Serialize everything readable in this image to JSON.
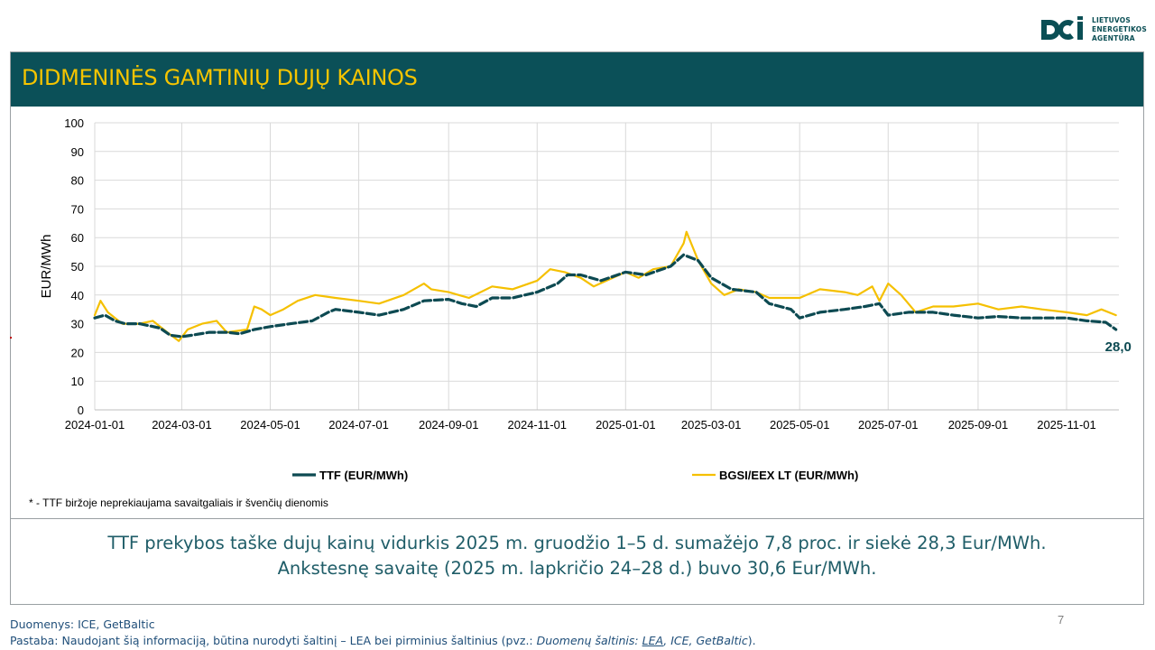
{
  "logo": {
    "line1": "LIETUVOS",
    "line2": "ENERGETIKOS",
    "line3": "AGENTŪRA"
  },
  "title": "DIDMENINĖS GAMTINIŲ DUJŲ KAINOS",
  "footnote": "* - TTF biržoje neprekiaujama savaitgaliais ir švenčių dienomis",
  "summary": {
    "line1": "TTF prekybos taške dujų kainų vidurkis 2025 m. gruodžio 1–5 d. sumažėjo 7,8 proc. ir siekė 28,3 Eur/MWh.",
    "line2": "Ankstesnę savaitę (2025 m. lapkričio 24–28 d.) buvo 30,6 Eur/MWh."
  },
  "page_number": "7",
  "footer": {
    "sources": "Duomenys: ICE, GetBaltic",
    "note_prefix": "Pastaba: Naudojant šią informaciją, būtina nurodyti šaltinį – LEA bei pirminius šaltinius (pvz.: ",
    "note_italic": "Duomenų šaltinis: ",
    "note_link": "LEA",
    "note_italic2": ", ICE, GetBaltic",
    "note_suffix": ")."
  },
  "colors": {
    "ttf": "#0d4a52",
    "bgsi": "#f5c000",
    "title_bg": "#0b5058",
    "title_text": "#f5c400",
    "summary_text": "#1f5d68"
  },
  "chart_data": {
    "type": "line",
    "title": "",
    "xlabel": "",
    "ylabel": "EUR/MWh",
    "ylim": [
      0,
      100
    ],
    "yticks": [
      "0",
      "10",
      "20",
      "30",
      "40",
      "50",
      "60",
      "70",
      "80",
      "90",
      "100"
    ],
    "xticks": [
      "2024-01-01",
      "2024-03-01",
      "2024-05-01",
      "2024-07-01",
      "2024-09-01",
      "2024-11-01",
      "2025-01-01",
      "2025-03-01",
      "2025-05-01",
      "2025-07-01",
      "2025-09-01",
      "2025-11-01"
    ],
    "x_range": [
      "2024-01-01",
      "2025-12-05"
    ],
    "grid": true,
    "legend_position": "bottom",
    "end_label": "28,0",
    "series": [
      {
        "name": "TTF (EUR/MWh)",
        "style": "dashed",
        "points": [
          [
            "2024-01-01",
            32
          ],
          [
            "2024-01-08",
            33
          ],
          [
            "2024-01-15",
            31
          ],
          [
            "2024-01-22",
            30
          ],
          [
            "2024-02-01",
            30
          ],
          [
            "2024-02-15",
            28.5
          ],
          [
            "2024-02-22",
            26
          ],
          [
            "2024-03-01",
            25.5
          ],
          [
            "2024-03-08",
            26
          ],
          [
            "2024-03-20",
            27
          ],
          [
            "2024-04-01",
            27
          ],
          [
            "2024-04-10",
            26.5
          ],
          [
            "2024-04-20",
            28
          ],
          [
            "2024-05-01",
            29
          ],
          [
            "2024-05-15",
            30
          ],
          [
            "2024-05-30",
            31
          ],
          [
            "2024-06-10",
            34
          ],
          [
            "2024-06-15",
            35
          ],
          [
            "2024-07-01",
            34
          ],
          [
            "2024-07-15",
            33
          ],
          [
            "2024-08-01",
            35
          ],
          [
            "2024-08-15",
            38
          ],
          [
            "2024-09-01",
            38.5
          ],
          [
            "2024-09-10",
            37
          ],
          [
            "2024-09-20",
            36
          ],
          [
            "2024-10-01",
            39
          ],
          [
            "2024-10-15",
            39
          ],
          [
            "2024-11-01",
            41
          ],
          [
            "2024-11-15",
            44
          ],
          [
            "2024-11-22",
            47
          ],
          [
            "2024-12-01",
            47
          ],
          [
            "2024-12-15",
            45
          ],
          [
            "2025-01-01",
            48
          ],
          [
            "2025-01-15",
            47
          ],
          [
            "2025-02-01",
            50
          ],
          [
            "2025-02-10",
            54
          ],
          [
            "2025-02-20",
            52
          ],
          [
            "2025-03-01",
            46
          ],
          [
            "2025-03-15",
            42
          ],
          [
            "2025-04-01",
            41
          ],
          [
            "2025-04-10",
            37
          ],
          [
            "2025-04-25",
            35
          ],
          [
            "2025-05-01",
            32
          ],
          [
            "2025-05-15",
            34
          ],
          [
            "2025-06-01",
            35
          ],
          [
            "2025-06-15",
            36
          ],
          [
            "2025-06-25",
            37
          ],
          [
            "2025-07-01",
            33
          ],
          [
            "2025-07-15",
            34
          ],
          [
            "2025-08-01",
            34
          ],
          [
            "2025-08-15",
            33
          ],
          [
            "2025-09-01",
            32
          ],
          [
            "2025-09-15",
            32.5
          ],
          [
            "2025-10-01",
            32
          ],
          [
            "2025-10-15",
            32
          ],
          [
            "2025-11-01",
            32
          ],
          [
            "2025-11-15",
            31
          ],
          [
            "2025-11-28",
            30.5
          ],
          [
            "2025-12-05",
            28
          ]
        ]
      },
      {
        "name": "BGSI/EEX LT (EUR/MWh)",
        "style": "solid",
        "points": [
          [
            "2024-01-01",
            33
          ],
          [
            "2024-01-05",
            38
          ],
          [
            "2024-01-10",
            34
          ],
          [
            "2024-01-20",
            30
          ],
          [
            "2024-02-01",
            30
          ],
          [
            "2024-02-10",
            31
          ],
          [
            "2024-02-20",
            27
          ],
          [
            "2024-02-28",
            24
          ],
          [
            "2024-03-05",
            28
          ],
          [
            "2024-03-15",
            30
          ],
          [
            "2024-03-25",
            31
          ],
          [
            "2024-04-01",
            27
          ],
          [
            "2024-04-15",
            28
          ],
          [
            "2024-04-20",
            36
          ],
          [
            "2024-04-25",
            35
          ],
          [
            "2024-05-01",
            33
          ],
          [
            "2024-05-10",
            35
          ],
          [
            "2024-05-20",
            38
          ],
          [
            "2024-06-01",
            40
          ],
          [
            "2024-06-15",
            39
          ],
          [
            "2024-07-01",
            38
          ],
          [
            "2024-07-15",
            37
          ],
          [
            "2024-08-01",
            40
          ],
          [
            "2024-08-15",
            44
          ],
          [
            "2024-08-20",
            42
          ],
          [
            "2024-09-01",
            41
          ],
          [
            "2024-09-15",
            39
          ],
          [
            "2024-10-01",
            43
          ],
          [
            "2024-10-15",
            42
          ],
          [
            "2024-11-01",
            45
          ],
          [
            "2024-11-10",
            49
          ],
          [
            "2024-11-20",
            48
          ],
          [
            "2024-12-01",
            46
          ],
          [
            "2024-12-10",
            43
          ],
          [
            "2025-01-01",
            48
          ],
          [
            "2025-01-10",
            46
          ],
          [
            "2025-01-20",
            49
          ],
          [
            "2025-02-01",
            50
          ],
          [
            "2025-02-10",
            58
          ],
          [
            "2025-02-12",
            62
          ],
          [
            "2025-02-20",
            52
          ],
          [
            "2025-03-01",
            44
          ],
          [
            "2025-03-10",
            40
          ],
          [
            "2025-03-20",
            42
          ],
          [
            "2025-04-01",
            41
          ],
          [
            "2025-04-10",
            39
          ],
          [
            "2025-04-20",
            39
          ],
          [
            "2025-05-01",
            39
          ],
          [
            "2025-05-15",
            42
          ],
          [
            "2025-06-01",
            41
          ],
          [
            "2025-06-10",
            40
          ],
          [
            "2025-06-20",
            43
          ],
          [
            "2025-06-25",
            38
          ],
          [
            "2025-07-01",
            44
          ],
          [
            "2025-07-10",
            40
          ],
          [
            "2025-07-20",
            34
          ],
          [
            "2025-08-01",
            36
          ],
          [
            "2025-08-15",
            36
          ],
          [
            "2025-09-01",
            37
          ],
          [
            "2025-09-15",
            35
          ],
          [
            "2025-10-01",
            36
          ],
          [
            "2025-10-15",
            35
          ],
          [
            "2025-11-01",
            34
          ],
          [
            "2025-11-15",
            33
          ],
          [
            "2025-11-25",
            35
          ],
          [
            "2025-12-05",
            33
          ]
        ]
      }
    ]
  }
}
